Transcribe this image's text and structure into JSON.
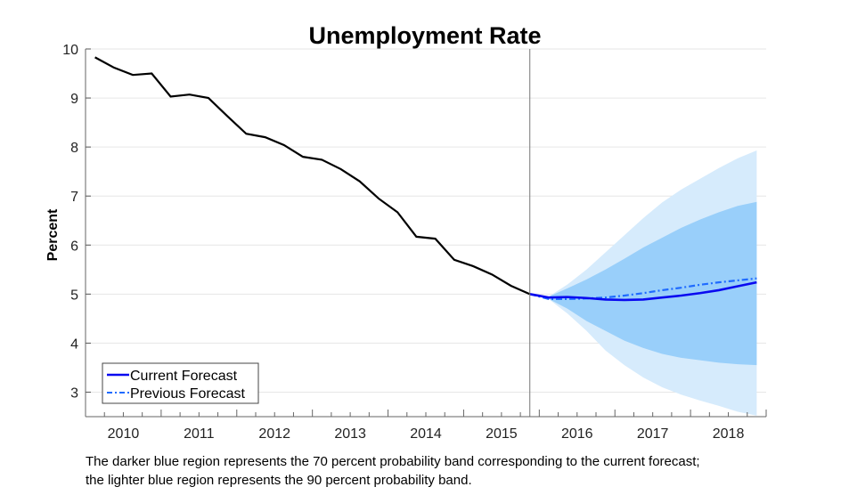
{
  "chart_data": {
    "type": "line",
    "title": "Unemployment Rate",
    "xlabel": "",
    "ylabel": "Percent",
    "xlim": [
      2010,
      2019
    ],
    "ylim": [
      2.5,
      10
    ],
    "yticks": [
      3,
      4,
      5,
      6,
      7,
      8,
      9,
      10
    ],
    "xtick_labels": [
      "2010",
      "2011",
      "2012",
      "2013",
      "2014",
      "2015",
      "2016",
      "2017",
      "2018"
    ],
    "grid": true,
    "legend_position": "bottom-left",
    "forecast_start": "2015Q4",
    "history": {
      "quarters_start": "2010Q1",
      "values": [
        9.83,
        9.62,
        9.47,
        9.5,
        9.03,
        9.07,
        9.0,
        8.63,
        8.27,
        8.2,
        8.04,
        7.8,
        7.74,
        7.55,
        7.3,
        6.95,
        6.67,
        6.17,
        6.13,
        5.7,
        5.57,
        5.4,
        5.17,
        5.0
      ]
    },
    "forecast_quarters_start": "2015Q4",
    "series": [
      {
        "name": "Current Forecast",
        "style": "solid",
        "color": "#0a0af0",
        "values": [
          5.0,
          4.93,
          4.94,
          4.92,
          4.89,
          4.88,
          4.89,
          4.93,
          4.97,
          5.02,
          5.08,
          5.16,
          5.24
        ]
      },
      {
        "name": "Previous Forecast",
        "style": "dash-dot",
        "color": "#1f6bff",
        "values": [
          5.0,
          4.9,
          4.9,
          4.91,
          4.93,
          4.97,
          5.02,
          5.08,
          5.13,
          5.19,
          5.24,
          5.28,
          5.32
        ]
      }
    ],
    "bands": [
      {
        "level": "90 percent",
        "color": "#d6ebfc",
        "upper": [
          5.0,
          4.95,
          5.2,
          5.5,
          5.85,
          6.2,
          6.55,
          6.87,
          7.13,
          7.35,
          7.57,
          7.77,
          7.93
        ],
        "lower": [
          5.0,
          4.9,
          4.6,
          4.25,
          3.85,
          3.55,
          3.3,
          3.1,
          2.95,
          2.83,
          2.72,
          2.6,
          2.52
        ]
      },
      {
        "level": "70 percent",
        "color": "#99cffa",
        "upper": [
          5.0,
          4.95,
          5.12,
          5.3,
          5.5,
          5.72,
          5.95,
          6.15,
          6.35,
          6.52,
          6.67,
          6.8,
          6.88
        ],
        "lower": [
          5.0,
          4.9,
          4.7,
          4.45,
          4.25,
          4.05,
          3.9,
          3.78,
          3.7,
          3.65,
          3.6,
          3.57,
          3.55
        ]
      }
    ]
  },
  "caption": {
    "line1": "The darker blue region represents the 70 percent probability band corresponding to the current forecast;",
    "line2": "the lighter blue region represents the 90 percent probability band."
  }
}
